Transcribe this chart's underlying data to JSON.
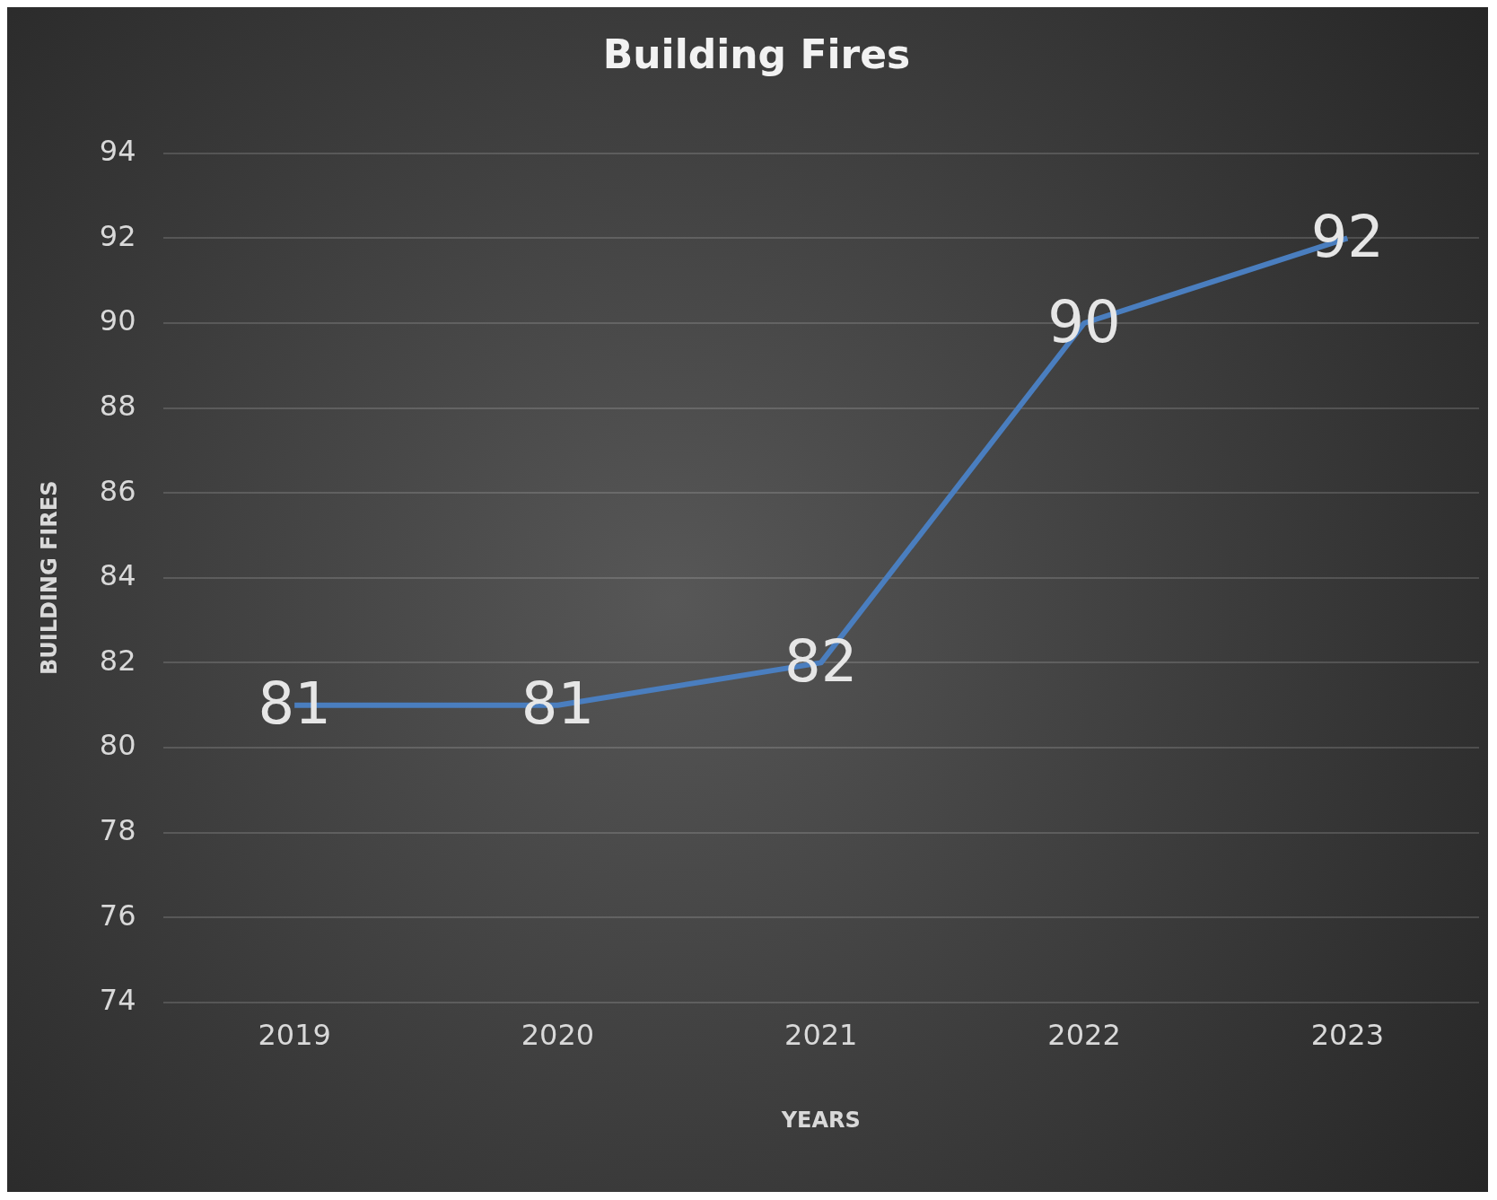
{
  "chart_data": {
    "type": "line",
    "title": "Building Fires",
    "xlabel": "YEARS",
    "ylabel": "BUILDING FIRES",
    "categories": [
      "2019",
      "2020",
      "2021",
      "2022",
      "2023"
    ],
    "series": [
      {
        "color": "#4a7ebf",
        "values": [
          81,
          81,
          82,
          90,
          92
        ]
      }
    ],
    "ylim": [
      74,
      94
    ],
    "yticks": [
      74,
      76,
      78,
      80,
      82,
      84,
      86,
      88,
      90,
      92,
      94
    ],
    "grid": "y",
    "legend": false,
    "marker": "none",
    "line_style": "solid",
    "data_labels": true
  }
}
